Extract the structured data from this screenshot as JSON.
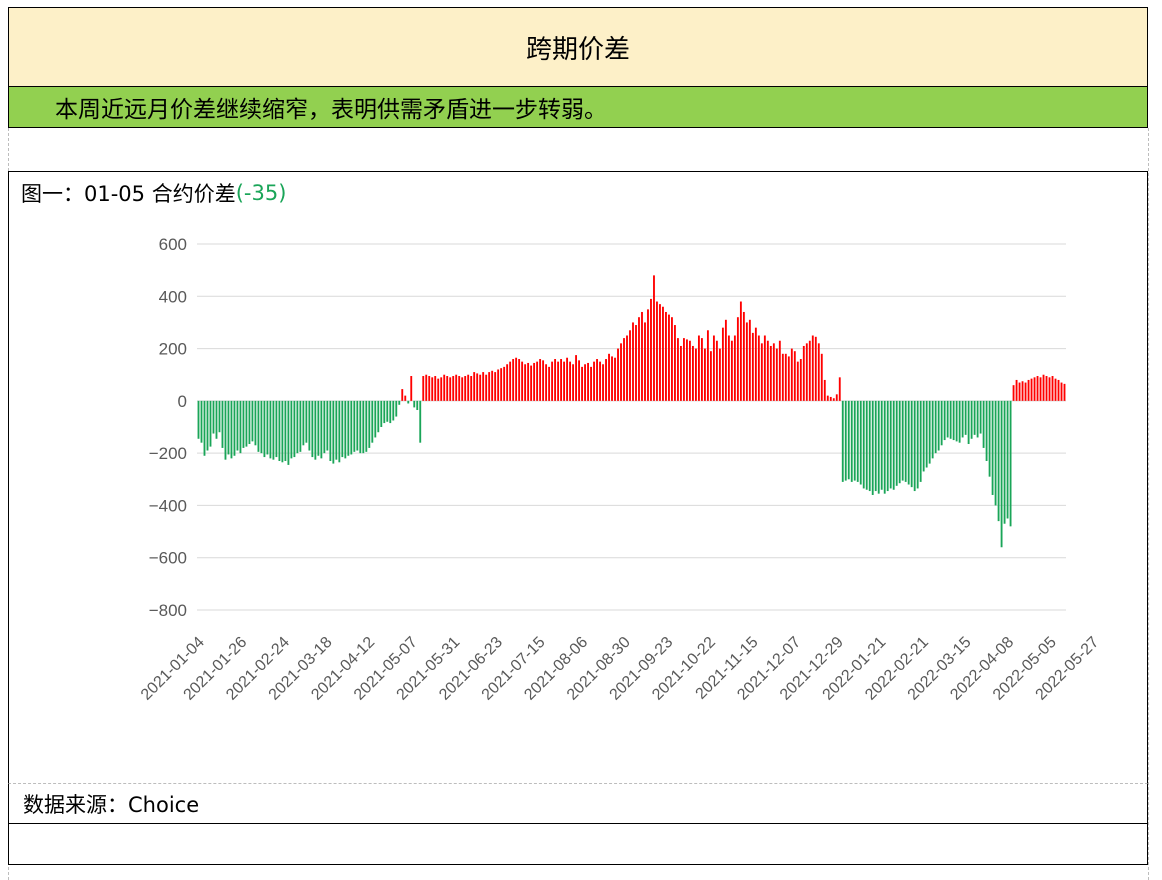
{
  "header": {
    "title": "跨期价差",
    "summary": "本周近远月价差继续缩窄，表明供需矛盾进一步转弱。"
  },
  "figure": {
    "label": "图一：01-05 合约价差",
    "value_text": "(-35)"
  },
  "footer": {
    "source": "数据来源：Choice"
  },
  "colors": {
    "positive": "#ff0000",
    "negative": "#1aa558",
    "title_bg": "#fdf0c8",
    "summary_bg": "#92d050",
    "grid": "#d9d9d9",
    "axis_text": "#595959"
  },
  "chart_data": {
    "type": "bar",
    "title": "",
    "xlabel": "",
    "ylabel": "",
    "ylim": [
      -800,
      600
    ],
    "yticks": [
      600,
      400,
      200,
      0,
      -200,
      -400,
      -600,
      -800
    ],
    "ytick_labels": [
      "600",
      "400",
      "200",
      "0",
      "−200",
      "−400",
      "−600",
      "−800"
    ],
    "xtick_labels": [
      "2021-01-04",
      "2021-01-26",
      "2021-02-24",
      "2021-03-18",
      "2021-04-12",
      "2021-05-07",
      "2021-05-31",
      "2021-06-23",
      "2021-07-15",
      "2021-08-06",
      "2021-08-30",
      "2021-09-23",
      "2021-10-22",
      "2021-11-15",
      "2021-12-07",
      "2021-12-29",
      "2022-01-21",
      "2022-02-21",
      "2022-03-15",
      "2022-04-08",
      "2022-05-05",
      "2022-05-27"
    ],
    "grid": true,
    "legend": "none",
    "series": [
      {
        "values": [
          -145,
          -160,
          -210,
          -190,
          -175,
          -125,
          -145,
          -120,
          -180,
          -225,
          -205,
          -220,
          -210,
          -190,
          -200,
          -180,
          -175,
          -165,
          -155,
          -170,
          -195,
          -200,
          -215,
          -205,
          -220,
          -225,
          -215,
          -230,
          -235,
          -230,
          -245,
          -220,
          -215,
          -200,
          -195,
          -170,
          -160,
          -190,
          -215,
          -225,
          -210,
          -220,
          -200,
          -190,
          -230,
          -240,
          -225,
          -235,
          -215,
          -220,
          -210,
          -205,
          -195,
          -190,
          -200,
          -200,
          -195,
          -180,
          -160,
          -140,
          -120,
          -100,
          -85,
          -80,
          -85,
          -75,
          -60,
          -15,
          45,
          20,
          -10,
          95,
          -25,
          -35,
          -160,
          95,
          100,
          95,
          90,
          95,
          85,
          90,
          100,
          95,
          90,
          95,
          100,
          95,
          90,
          95,
          100,
          95,
          110,
          105,
          100,
          110,
          100,
          110,
          115,
          110,
          120,
          125,
          130,
          140,
          150,
          160,
          165,
          160,
          150,
          140,
          145,
          135,
          145,
          150,
          160,
          155,
          140,
          130,
          150,
          160,
          150,
          160,
          150,
          165,
          150,
          140,
          175,
          155,
          130,
          140,
          145,
          130,
          150,
          160,
          150,
          140,
          160,
          180,
          170,
          165,
          200,
          220,
          240,
          250,
          270,
          300,
          290,
          320,
          340,
          300,
          350,
          390,
          480,
          380,
          370,
          360,
          340,
          330,
          320,
          290,
          240,
          210,
          240,
          235,
          230,
          210,
          200,
          250,
          240,
          200,
          270,
          190,
          250,
          230,
          200,
          280,
          310,
          250,
          230,
          250,
          320,
          380,
          340,
          300,
          310,
          260,
          280,
          250,
          220,
          250,
          230,
          210,
          220,
          200,
          230,
          180,
          180,
          170,
          200,
          190,
          150,
          160,
          210,
          220,
          230,
          250,
          245,
          220,
          180,
          80,
          20,
          15,
          10,
          25,
          90,
          -310,
          -305,
          -300,
          -310,
          -305,
          -310,
          -320,
          -335,
          -340,
          -345,
          -360,
          -345,
          -355,
          -340,
          -355,
          -345,
          -335,
          -340,
          -325,
          -315,
          -305,
          -310,
          -320,
          -330,
          -345,
          -335,
          -310,
          -270,
          -255,
          -240,
          -220,
          -200,
          -190,
          -170,
          -150,
          -140,
          -145,
          -150,
          -155,
          -160,
          -140,
          -130,
          -165,
          -145,
          -130,
          -140,
          -125,
          -180,
          -230,
          -290,
          -360,
          -400,
          -460,
          -560,
          -470,
          -450,
          -480,
          60,
          80,
          70,
          75,
          70,
          80,
          85,
          90,
          95,
          90,
          100,
          95,
          90,
          95,
          85,
          80,
          70,
          65
        ]
      }
    ]
  }
}
